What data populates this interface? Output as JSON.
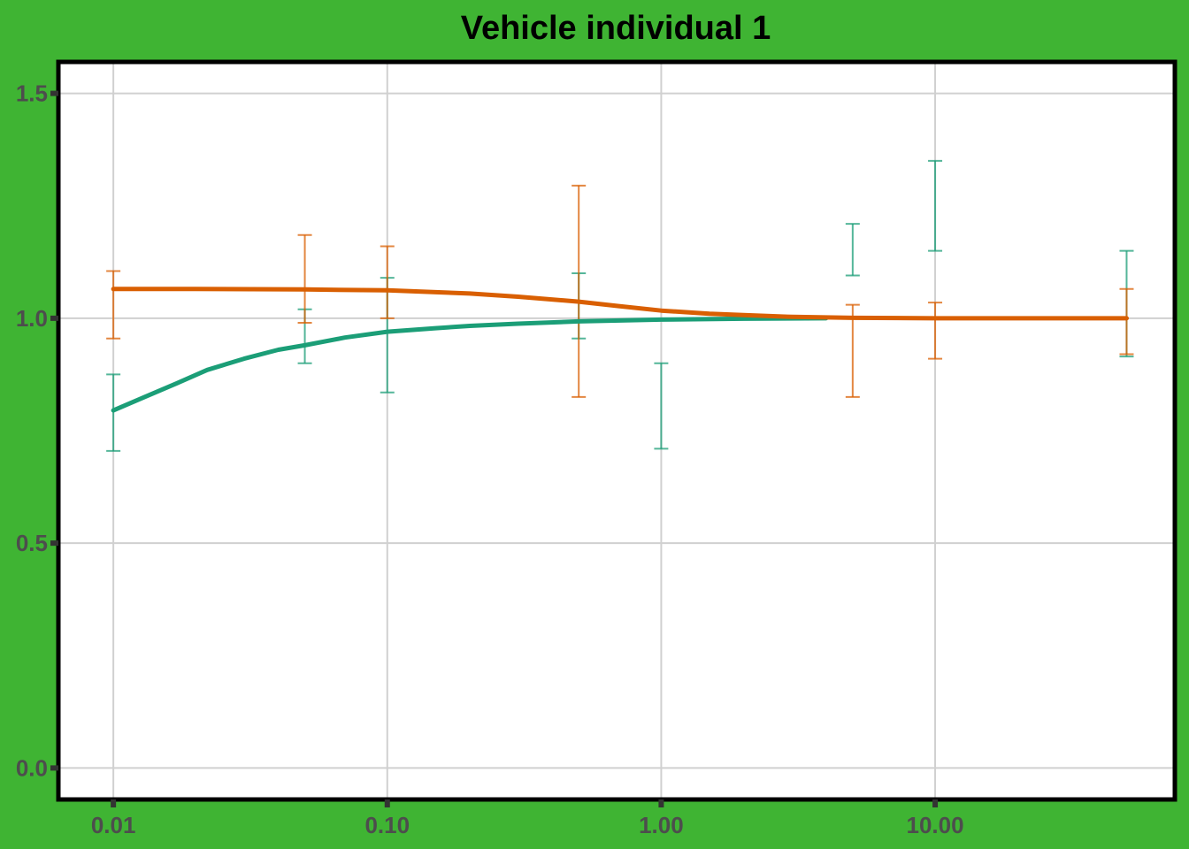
{
  "chart_data": {
    "type": "line",
    "title": "Vehicle individual 1",
    "xlabel": "",
    "ylabel": "",
    "x_scale": "log10",
    "xlim": [
      0.0063,
      75
    ],
    "ylim": [
      -0.07,
      1.57
    ],
    "x_ticks": [
      0.01,
      0.1,
      1,
      10
    ],
    "x_tick_labels": [
      "0.01",
      "0.10",
      "1.00",
      "10.00"
    ],
    "y_ticks": [
      0,
      0.5,
      1,
      1.5
    ],
    "y_tick_labels": [
      "0.0",
      "0.5",
      "1.0",
      "1.5"
    ],
    "grid": true,
    "legend": "none",
    "series": [
      {
        "color": "#1b9e77",
        "line": {
          "x": [
            0.01,
            0.013,
            0.017,
            0.022,
            0.03,
            0.04,
            0.05,
            0.07,
            0.1,
            0.15,
            0.2,
            0.3,
            0.5,
            1,
            2,
            4
          ],
          "y": [
            0.795,
            0.825,
            0.855,
            0.885,
            0.91,
            0.93,
            0.94,
            0.957,
            0.97,
            0.978,
            0.983,
            0.988,
            0.993,
            0.997,
            0.999,
            1.0
          ]
        },
        "error_bars": [
          {
            "x": 0.01,
            "low": 0.705,
            "high": 0.875
          },
          {
            "x": 0.05,
            "low": 0.9,
            "high": 1.02
          },
          {
            "x": 0.1,
            "low": 0.835,
            "high": 1.09
          },
          {
            "x": 0.5,
            "low": 0.955,
            "high": 1.1
          },
          {
            "x": 1,
            "low": 0.71,
            "high": 0.9
          },
          {
            "x": 5,
            "low": 1.095,
            "high": 1.21
          },
          {
            "x": 10,
            "low": 1.15,
            "high": 1.35
          },
          {
            "x": 50,
            "low": 0.915,
            "high": 1.15
          }
        ]
      },
      {
        "color": "#d95f02",
        "line": {
          "x": [
            0.01,
            0.02,
            0.05,
            0.1,
            0.2,
            0.3,
            0.5,
            0.7,
            1,
            1.5,
            2,
            3,
            5,
            10,
            50
          ],
          "y": [
            1.065,
            1.065,
            1.064,
            1.062,
            1.055,
            1.048,
            1.037,
            1.027,
            1.017,
            1.01,
            1.007,
            1.003,
            1.001,
            1.0,
            1.0
          ]
        },
        "error_bars": [
          {
            "x": 0.01,
            "low": 0.955,
            "high": 1.105
          },
          {
            "x": 0.05,
            "low": 0.99,
            "high": 1.185
          },
          {
            "x": 0.1,
            "low": 1.0,
            "high": 1.16
          },
          {
            "x": 0.5,
            "low": 0.825,
            "high": 1.295
          },
          {
            "x": 5,
            "low": 0.825,
            "high": 1.03
          },
          {
            "x": 10,
            "low": 0.91,
            "high": 1.035
          },
          {
            "x": 50,
            "low": 0.92,
            "high": 1.065
          }
        ]
      }
    ]
  }
}
